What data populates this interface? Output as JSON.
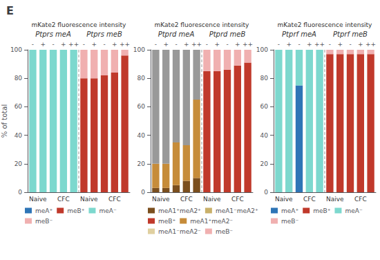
{
  "title": "E",
  "chart_data": [
    {
      "type": "bar",
      "stacked": true,
      "subtitle": "mKate2 fluorescence intensity",
      "y_label": "% of total",
      "categories": [
        "-",
        "+",
        "-",
        "+",
        "++",
        "-",
        "+",
        "-",
        "+",
        "++"
      ],
      "category_groups": [
        "Naive",
        "Naive",
        "CFC",
        "CFC",
        "CFC",
        "Naive",
        "Naive",
        "CFC",
        "CFC",
        "CFC"
      ],
      "category_sections": [
        "Ptprs meA",
        "Ptprs meA",
        "Ptprs meA",
        "Ptprs meA",
        "Ptprs meA",
        "Ptprs meB",
        "Ptprs meB",
        "Ptprs meB",
        "Ptprs meB",
        "Ptprs meB"
      ],
      "series": [
        {
          "name": "meA⁺",
          "color": "#2e75b6",
          "values": [
            0,
            0,
            0,
            0,
            0,
            null,
            null,
            null,
            null,
            null
          ]
        },
        {
          "name": "meB⁺",
          "color": "#c0392b",
          "values": [
            null,
            null,
            null,
            null,
            null,
            80,
            80,
            82,
            84,
            96
          ]
        },
        {
          "name": "meA⁻",
          "color": "#7dd8ce",
          "values": [
            100,
            100,
            100,
            100,
            100,
            null,
            null,
            null,
            null,
            null
          ]
        },
        {
          "name": "meB⁻",
          "color": "#f0b0b0",
          "values": [
            null,
            null,
            null,
            null,
            null,
            20,
            20,
            18,
            16,
            4
          ]
        }
      ],
      "ylim": [
        0,
        100
      ],
      "yticks": [
        0,
        20,
        40,
        60,
        80,
        100
      ],
      "grid": false,
      "legend": "bottom"
    },
    {
      "type": "bar",
      "stacked": true,
      "subtitle": "mKate2 fluorescence intensity",
      "categories": [
        "-",
        "+",
        "-",
        "+",
        "++",
        "-",
        "+",
        "-",
        "+",
        "++"
      ],
      "category_groups": [
        "Naive",
        "Naive",
        "CFC",
        "CFC",
        "CFC",
        "Naive",
        "Naive",
        "CFC",
        "CFC",
        "CFC"
      ],
      "category_sections": [
        "Ptprd meA",
        "Ptprd meA",
        "Ptprd meA",
        "Ptprd meA",
        "Ptprd meA",
        "Ptprd meB",
        "Ptprd meB",
        "Ptprd meB",
        "Ptprd meB",
        "Ptprd meB"
      ],
      "series": [
        {
          "name": "meA1⁺meA2⁺",
          "color": "#7b4f1e",
          "values": [
            3,
            3,
            5,
            8,
            10,
            null,
            null,
            null,
            null,
            null
          ]
        },
        {
          "name": "meA1⁻meA2⁺",
          "color": "#c9b06a",
          "values": [
            0,
            0,
            0,
            0,
            0,
            null,
            null,
            null,
            null,
            null
          ]
        },
        {
          "name": "meB⁺",
          "color": "#c0392b",
          "values": [
            null,
            null,
            null,
            null,
            null,
            85,
            85,
            86,
            89,
            91
          ]
        },
        {
          "name": "meA1⁺meA2⁻",
          "color": "#c68c3a",
          "values": [
            17,
            17,
            30,
            25,
            55,
            null,
            null,
            null,
            null,
            null
          ]
        },
        {
          "name": "meA1⁻meA2⁻",
          "color": "#e0d0a0",
          "values": [
            0,
            0,
            0,
            0,
            0,
            null,
            null,
            null,
            null,
            null
          ]
        },
        {
          "name": "meB⁻",
          "color": "#f0b0b0",
          "values": [
            null,
            null,
            null,
            null,
            null,
            15,
            15,
            14,
            11,
            9
          ]
        },
        {
          "color": "#999999",
          "values": [
            80,
            80,
            65,
            67,
            35,
            null,
            null,
            null,
            null,
            null
          ]
        }
      ],
      "ylim": [
        0,
        100
      ],
      "yticks": [
        0,
        20,
        40,
        60,
        80,
        100
      ],
      "grid": false,
      "legend": "bottom"
    },
    {
      "type": "bar",
      "stacked": true,
      "subtitle": "mKate2 fluorescence intensity",
      "categories": [
        "-",
        "+",
        "-",
        "+",
        "++",
        "-",
        "+",
        "-",
        "+",
        "++"
      ],
      "category_groups": [
        "Naive",
        "Naive",
        "CFC",
        "CFC",
        "CFC",
        "Naive",
        "Naive",
        "CFC",
        "CFC",
        "CFC"
      ],
      "category_sections": [
        "Ptprf meA",
        "Ptprf meA",
        "Ptprf meA",
        "Ptprf meA",
        "Ptprf meA",
        "Ptprf meB",
        "Ptprf meB",
        "Ptprf meB",
        "Ptprf meB",
        "Ptprf meB"
      ],
      "series": [
        {
          "name": "meA⁺",
          "color": "#2e75b6",
          "values": [
            0,
            0,
            75,
            0,
            0,
            null,
            null,
            null,
            null,
            null
          ]
        },
        {
          "name": "meB⁺",
          "color": "#c0392b",
          "values": [
            null,
            null,
            null,
            null,
            null,
            97,
            97,
            97,
            97,
            97
          ]
        },
        {
          "name": "meA⁻",
          "color": "#7dd8ce",
          "values": [
            100,
            100,
            25,
            100,
            100,
            null,
            null,
            null,
            null,
            null
          ]
        },
        {
          "name": "meB⁻",
          "color": "#f0b0b0",
          "values": [
            null,
            null,
            null,
            null,
            null,
            3,
            3,
            3,
            3,
            3
          ]
        }
      ],
      "ylim": [
        0,
        100
      ],
      "yticks": [
        0,
        20,
        40,
        60,
        80,
        100
      ],
      "grid": false,
      "legend": "bottom"
    }
  ]
}
